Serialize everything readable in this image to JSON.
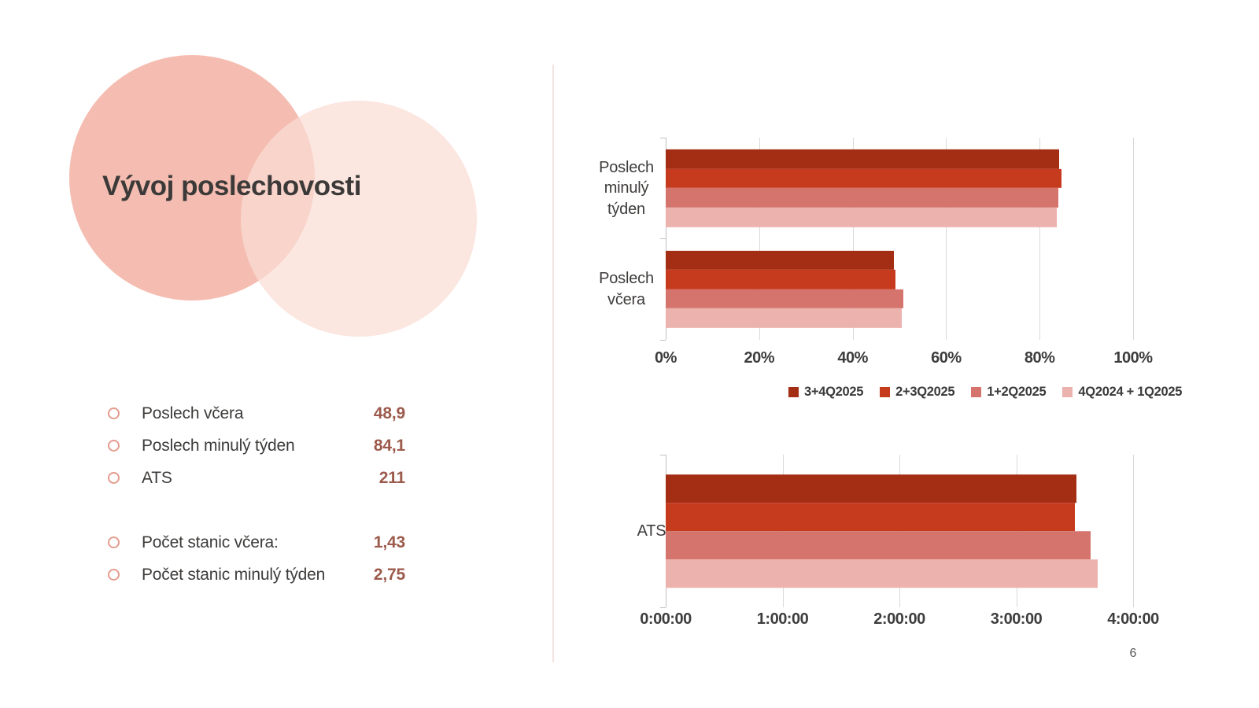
{
  "page": {
    "number": "6",
    "background": "#FFFFFF"
  },
  "title": "Vývoj poslechovosti",
  "colors": {
    "series_dark_red": "#A42E14",
    "series_red": "#C63A1E",
    "series_salmon": "#D5746C",
    "series_pink": "#ECB2AE",
    "value_text": "#9C5A4C",
    "bullet_ring": "#E59C8E",
    "circle_left": "#F3B2A3",
    "circle_right": "#FADCD4",
    "divider": "#F2E5E1",
    "gridline": "#D9D9D9"
  },
  "stats": {
    "rows": [
      {
        "label": "Poslech včera",
        "value": "48,9",
        "spacer_before": false
      },
      {
        "label": "Poslech minulý týden",
        "value": "84,1",
        "spacer_before": false
      },
      {
        "label": "ATS",
        "value": "211",
        "spacer_before": false
      },
      {
        "label": "Počet stanic včera:",
        "value": "1,43",
        "spacer_before": true
      },
      {
        "label": "Počet stanic minulý týden",
        "value": "2,75",
        "spacer_before": false
      }
    ]
  },
  "chart_data": [
    {
      "type": "bar",
      "orientation": "horizontal",
      "title": "",
      "categories": [
        "Poslech minulý týden",
        "Poslech včera"
      ],
      "category_lines": [
        "Poslech\nminulý\ntýden",
        "Poslech\nvčera"
      ],
      "series": [
        {
          "name": "3+4Q2025",
          "color": "#A42E14",
          "values": [
            84.1,
            48.9
          ]
        },
        {
          "name": "2+3Q2025",
          "color": "#C63A1E",
          "values": [
            84.6,
            49.2
          ]
        },
        {
          "name": "1+2Q2025",
          "color": "#D5746C",
          "values": [
            84.0,
            50.8
          ]
        },
        {
          "name": "4Q2024 + 1Q2025",
          "color": "#ECB2AE",
          "values": [
            83.6,
            50.5
          ]
        }
      ],
      "xlim": [
        0,
        100
      ],
      "xmax": 100,
      "x_ticks": [
        "0%",
        "20%",
        "40%",
        "60%",
        "80%",
        "100%"
      ],
      "grid": true,
      "legend_position": "bottom"
    },
    {
      "type": "bar",
      "orientation": "horizontal",
      "title": "",
      "categories": [
        "ATS"
      ],
      "category_lines": [
        "ATS"
      ],
      "series": [
        {
          "name": "3+4Q2025",
          "color": "#A42E14",
          "values": [
            3.517
          ],
          "value_labels": [
            "3:31:00"
          ]
        },
        {
          "name": "2+3Q2025",
          "color": "#C63A1E",
          "values": [
            3.5
          ],
          "value_labels": [
            "3:30:00"
          ]
        },
        {
          "name": "1+2Q2025",
          "color": "#D5746C",
          "values": [
            3.633
          ],
          "value_labels": [
            "3:38:00"
          ]
        },
        {
          "name": "4Q2024 + 1Q2025",
          "color": "#ECB2AE",
          "values": [
            3.7
          ],
          "value_labels": [
            "3:42:00"
          ]
        }
      ],
      "xlim": [
        0,
        4
      ],
      "xmax": 4,
      "x_ticks": [
        "0:00:00",
        "1:00:00",
        "2:00:00",
        "3:00:00",
        "4:00:00"
      ],
      "grid": true,
      "legend_position": "none"
    }
  ]
}
